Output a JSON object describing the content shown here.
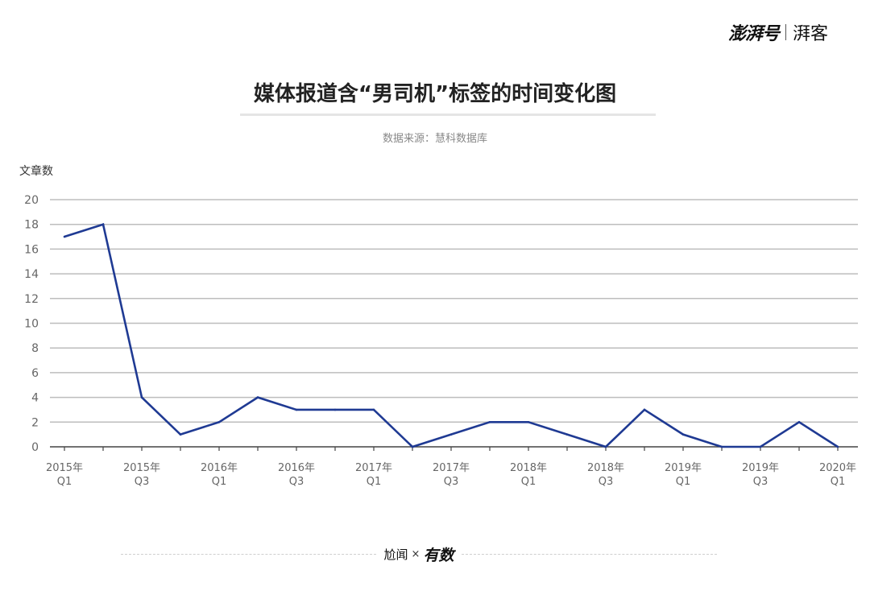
{
  "brand": {
    "main": "澎湃号",
    "sub": "湃客"
  },
  "title": "媒体报道含“男司机”标签的时间变化图",
  "subtitle": "数据来源：慧科数据库",
  "footer": {
    "left": "尬闻",
    "cross": "×",
    "right": "有数"
  },
  "colors": {
    "line": "#1f3a93",
    "grid": "#bdbdbd",
    "axis": "#444444",
    "tick_text": "#666666"
  },
  "chart_data": {
    "type": "line",
    "ylabel": "文章数",
    "xlabel": "",
    "ylim": [
      0,
      20
    ],
    "yticks": [
      0,
      2,
      4,
      6,
      8,
      10,
      12,
      14,
      16,
      18,
      20
    ],
    "grid": true,
    "x": [
      "2015Q1",
      "2015Q2",
      "2015Q3",
      "2015Q4",
      "2016Q1",
      "2016Q2",
      "2016Q3",
      "2016Q4",
      "2017Q1",
      "2017Q2",
      "2017Q3",
      "2017Q4",
      "2018Q1",
      "2018Q2",
      "2018Q3",
      "2018Q4",
      "2019Q1",
      "2019Q2",
      "2019Q3",
      "2019Q4",
      "2020Q1"
    ],
    "values": [
      17,
      18,
      4,
      1,
      2,
      4,
      3,
      3,
      3,
      0,
      1,
      2,
      2,
      1,
      0,
      3,
      1,
      0,
      0,
      2,
      0
    ],
    "tick_labels": [
      {
        "index": 0,
        "year": "2015年",
        "q": "Q1"
      },
      {
        "index": 2,
        "year": "2015年",
        "q": "Q3"
      },
      {
        "index": 4,
        "year": "2016年",
        "q": "Q1"
      },
      {
        "index": 6,
        "year": "2016年",
        "q": "Q3"
      },
      {
        "index": 8,
        "year": "2017年",
        "q": "Q1"
      },
      {
        "index": 10,
        "year": "2017年",
        "q": "Q3"
      },
      {
        "index": 12,
        "year": "2018年",
        "q": "Q1"
      },
      {
        "index": 14,
        "year": "2018年",
        "q": "Q3"
      },
      {
        "index": 16,
        "year": "2019年",
        "q": "Q1"
      },
      {
        "index": 18,
        "year": "2019年",
        "q": "Q3"
      },
      {
        "index": 20,
        "year": "2020年",
        "q": "Q1"
      }
    ]
  }
}
